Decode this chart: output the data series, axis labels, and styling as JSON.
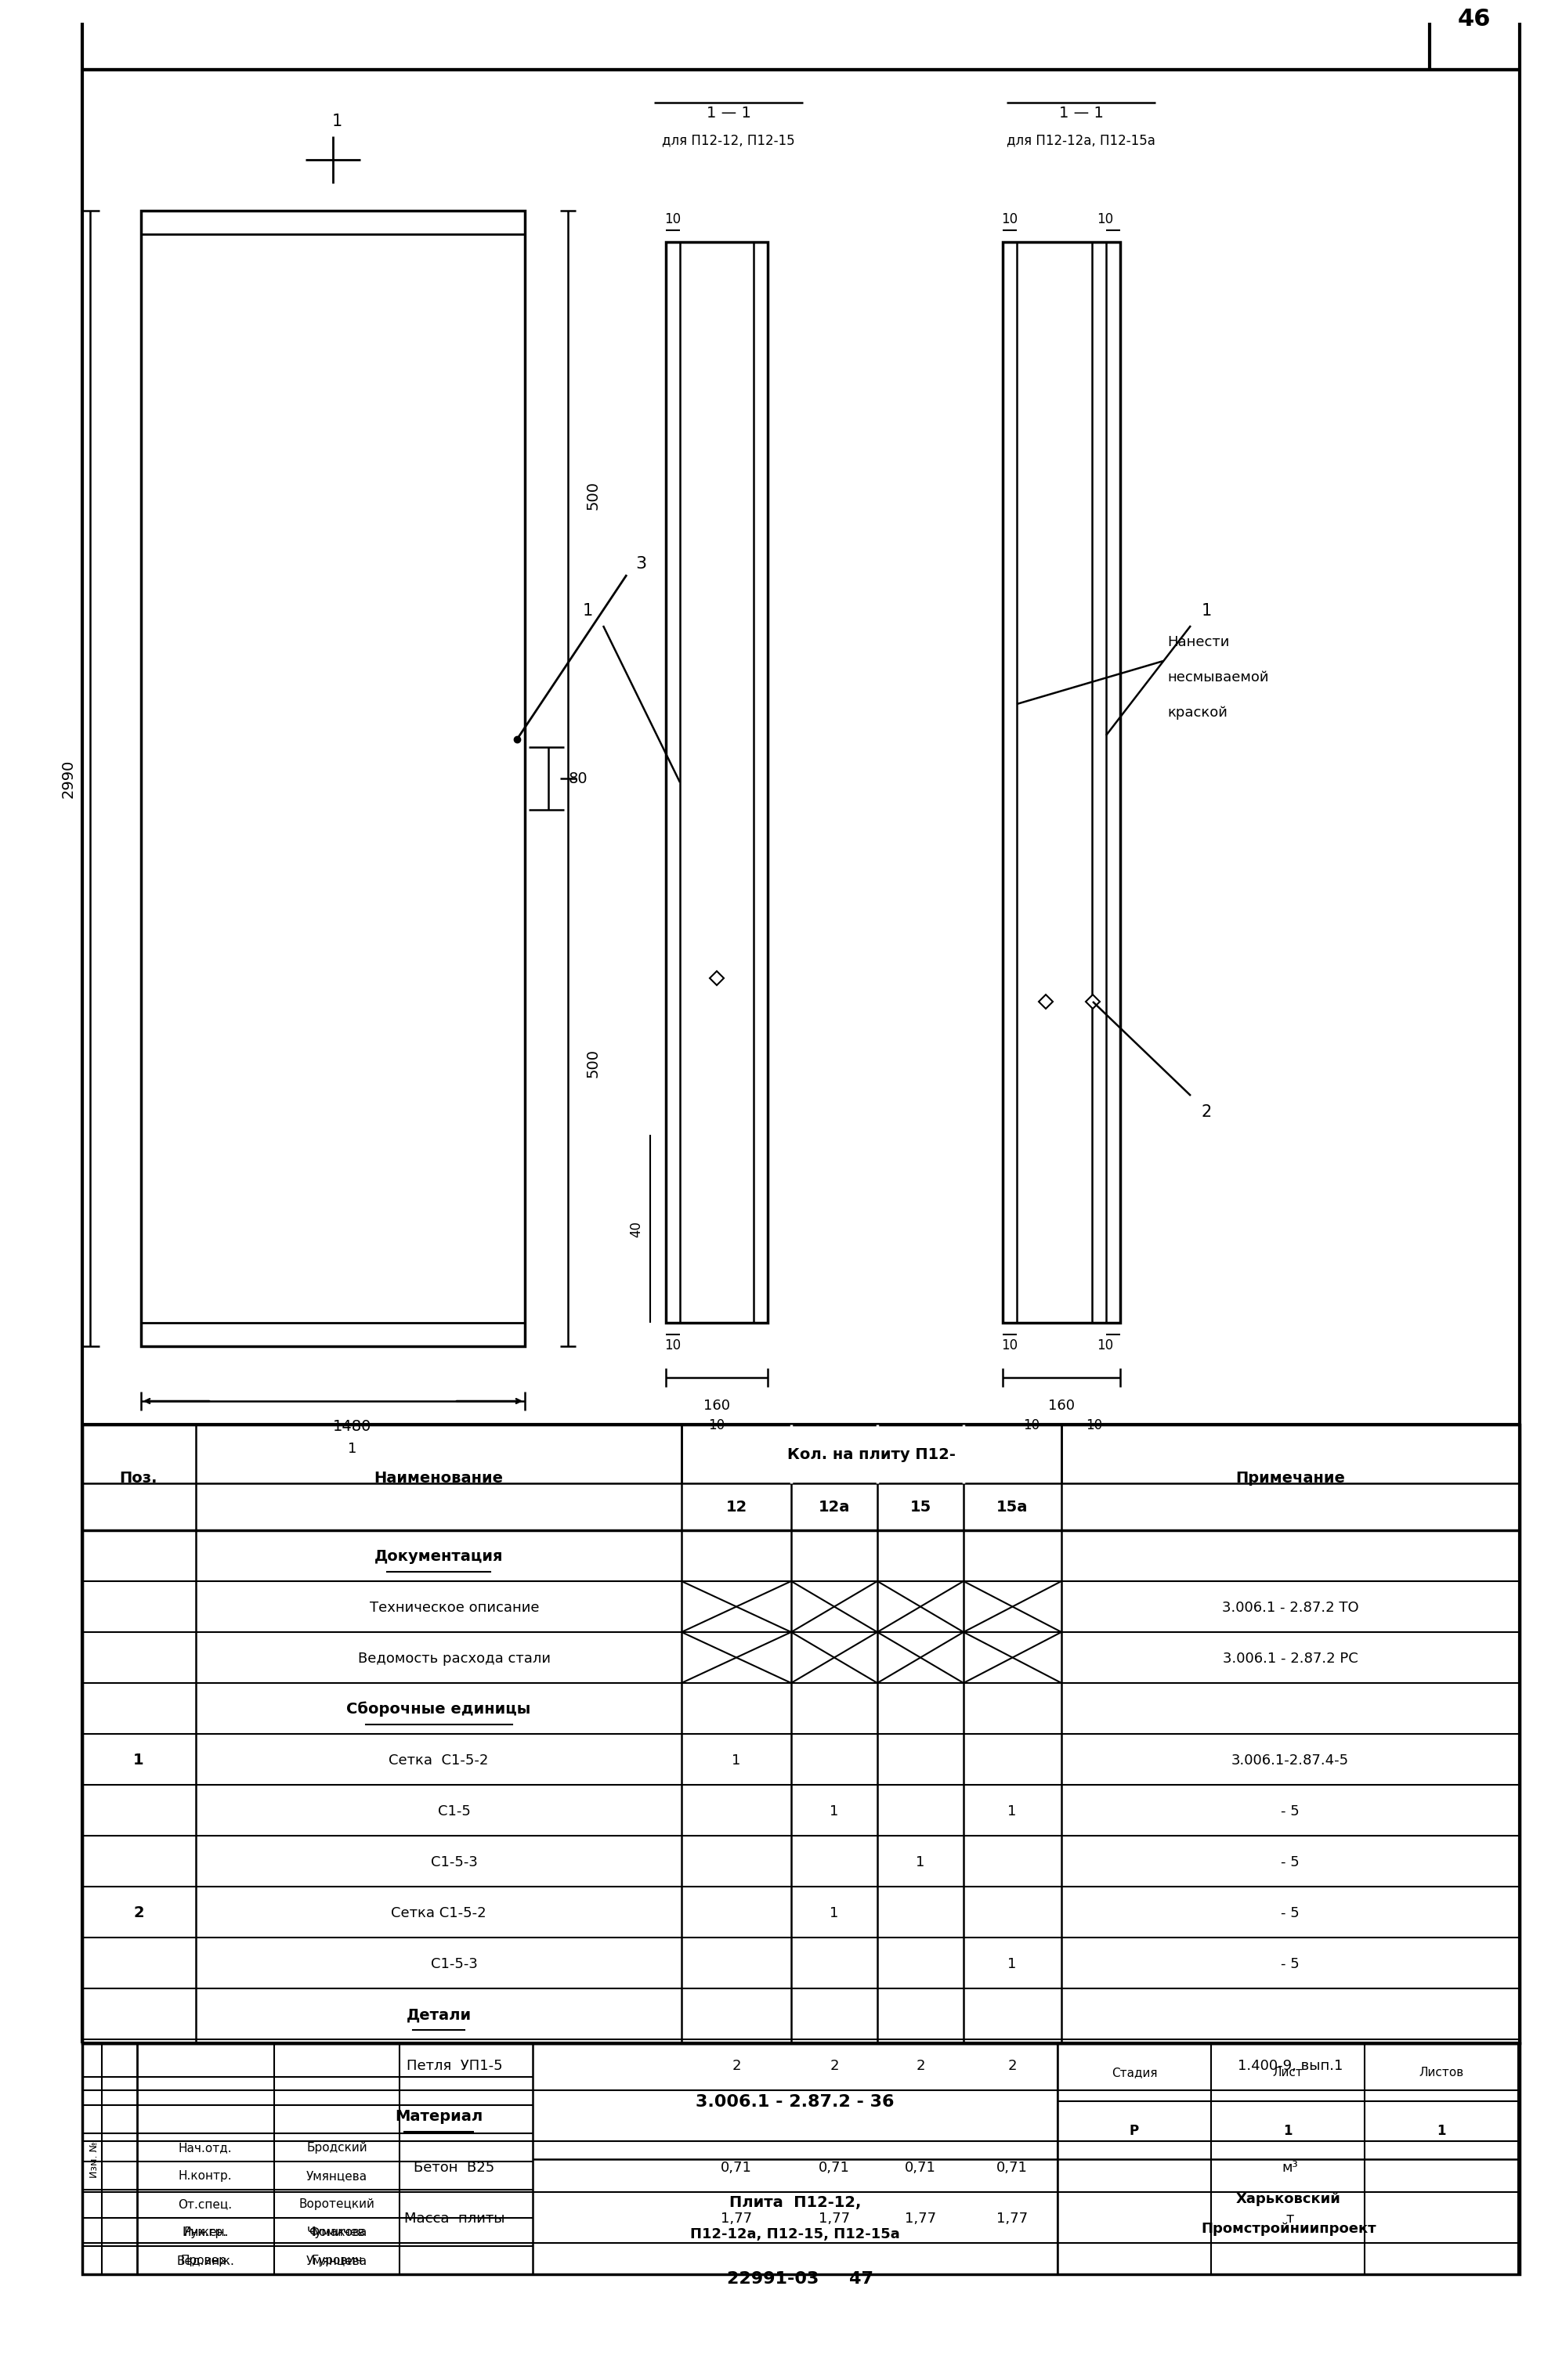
{
  "page_number": "46",
  "doc_number": "22991-03",
  "sheet_number": "47",
  "bg_color": "#ffffff",
  "table_rows": [
    {
      "pos": "",
      "name": "Документация",
      "q12": "",
      "q12a": "",
      "q15": "",
      "q15a": "",
      "note": "",
      "cross": false,
      "section_header": true
    },
    {
      "pos": "",
      "name": "Техническое описание",
      "q12": "",
      "q12a": "",
      "q15": "",
      "q15a": "",
      "note": "3.006.1 - 2.87.2 ТО",
      "cross": true,
      "section_header": false
    },
    {
      "pos": "",
      "name": "Ведомость расхода стали",
      "q12": "",
      "q12a": "",
      "q15": "",
      "q15a": "",
      "note": "3.006.1 - 2.87.2 РС",
      "cross": true,
      "section_header": false
    },
    {
      "pos": "",
      "name": "Сборочные единицы",
      "q12": "",
      "q12a": "",
      "q15": "",
      "q15a": "",
      "note": "",
      "cross": false,
      "section_header": true
    },
    {
      "pos": "1",
      "name": "Сетка  С1-5-2",
      "q12": "1",
      "q12a": "",
      "q15": "",
      "q15a": "",
      "note": "3.006.1-2.87.4-5",
      "cross": false,
      "section_header": false
    },
    {
      "pos": "",
      "name": "С1-5",
      "q12": "",
      "q12a": "1",
      "q15": "",
      "q15a": "1",
      "note": "- 5",
      "cross": false,
      "section_header": false
    },
    {
      "pos": "",
      "name": "С1-5-3",
      "q12": "",
      "q12a": "",
      "q15": "1",
      "q15a": "",
      "note": "- 5",
      "cross": false,
      "section_header": false
    },
    {
      "pos": "2",
      "name": "Сетка С1-5-2",
      "q12": "",
      "q12a": "1",
      "q15": "",
      "q15a": "",
      "note": "- 5",
      "cross": false,
      "section_header": false
    },
    {
      "pos": "",
      "name": "С1-5-3",
      "q12": "",
      "q12a": "",
      "q15": "",
      "q15a": "1",
      "note": "- 5",
      "cross": false,
      "section_header": false
    },
    {
      "pos": "",
      "name": "Детали",
      "q12": "",
      "q12a": "",
      "q15": "",
      "q15a": "",
      "note": "",
      "cross": false,
      "section_header": true
    },
    {
      "pos": "",
      "name": "Петля  УП1-5",
      "q12": "2",
      "q12a": "2",
      "q15": "2",
      "q15a": "2",
      "note": "1.400-9, вып.1",
      "cross": false,
      "section_header": false
    },
    {
      "pos": "",
      "name": "Материал",
      "q12": "",
      "q12a": "",
      "q15": "",
      "q15a": "",
      "note": "",
      "cross": false,
      "section_header": true
    },
    {
      "pos": "",
      "name": "Бетон  В25",
      "q12": "0,71",
      "q12a": "0,71",
      "q15": "0,71",
      "q15a": "0,71",
      "note": "м³",
      "cross": false,
      "section_header": false
    },
    {
      "pos": "",
      "name": "Масса  плиты",
      "q12": "1,77",
      "q12a": "1,77",
      "q15": "1,77",
      "q15a": "1,77",
      "note": "т",
      "cross": false,
      "section_header": false
    }
  ],
  "personnel_top": [
    [
      "Нач.отд.",
      "Бродский"
    ],
    [
      "Н.контр.",
      "Умянцева"
    ],
    [
      "От.спец.",
      "Воротецкий"
    ],
    [
      "Рук.гр.",
      "Чумакова"
    ],
    [
      "Вед.инж.",
      "Умянцева"
    ]
  ],
  "personnel_bot": [
    [
      "Инжен.",
      "Фомичев"
    ],
    [
      "Провер.",
      "Гурович"
    ]
  ]
}
